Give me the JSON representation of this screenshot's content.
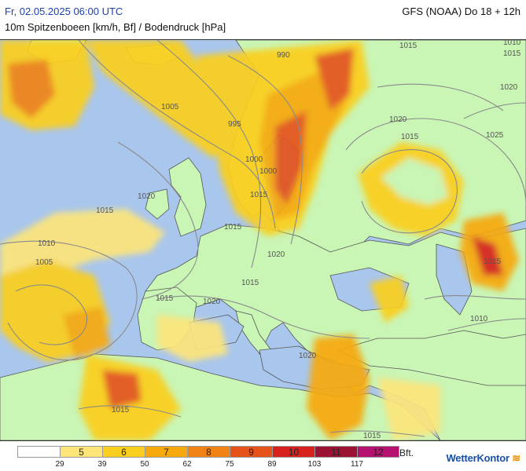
{
  "header": {
    "date": "Fr, 02.05.2025 06:00 UTC",
    "model": "GFS (NOAA) Do 18 + 12h",
    "parameter": "10m Spitzenboeen [km/h, Bf] / Bodendruck [hPa]"
  },
  "legend": {
    "unit": "Bft.",
    "classes": [
      {
        "label": "",
        "color": "#ffffff"
      },
      {
        "label": "5",
        "color": "#fde57a"
      },
      {
        "label": "6",
        "color": "#fbcf1f"
      },
      {
        "label": "7",
        "color": "#f7a90c"
      },
      {
        "label": "8",
        "color": "#f18316"
      },
      {
        "label": "9",
        "color": "#e5531a"
      },
      {
        "label": "10",
        "color": "#d8211d"
      },
      {
        "label": "11",
        "color": "#9c1232"
      },
      {
        "label": "12",
        "color": "#b4126e"
      }
    ],
    "ticks": [
      "29",
      "39",
      "50",
      "62",
      "75",
      "89",
      "103",
      "117"
    ]
  },
  "isobar_labels": [
    "990",
    "1015",
    "1005",
    "995",
    "1000",
    "1000",
    "1015",
    "1020",
    "1015",
    "1015",
    "1010",
    "1005",
    "1015",
    "1020",
    "1015",
    "1020",
    "1020",
    "1015",
    "1020",
    "1025",
    "1015",
    "1010",
    "1015",
    "1015",
    "1010",
    "1015",
    "1020"
  ],
  "colors": {
    "sea": "#a9c6ec",
    "land": "#c9f5b5",
    "isobar": "#8a8a8a",
    "border": "#555555"
  },
  "brand": {
    "name": "WetterKontor"
  }
}
